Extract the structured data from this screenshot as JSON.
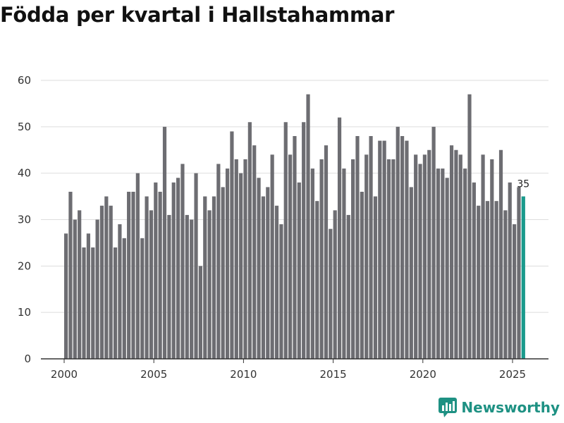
{
  "chart_data": {
    "type": "bar",
    "title": "Födda per kvartal i Hallstahammar",
    "xlabel": "",
    "ylabel": "",
    "ylim": [
      0,
      60
    ],
    "yticks": [
      0,
      10,
      20,
      30,
      40,
      50,
      60
    ],
    "xticks": [
      2000,
      2005,
      2010,
      2015,
      2020,
      2025
    ],
    "start_year": 2000,
    "highlight_label": "35",
    "colors": {
      "bar": "#6d6d72",
      "highlight": "#1a9a8c",
      "grid": "#dddddd",
      "axis": "#333333"
    },
    "values": [
      27,
      36,
      30,
      32,
      24,
      27,
      24,
      30,
      33,
      35,
      33,
      24,
      29,
      26,
      36,
      36,
      40,
      26,
      35,
      32,
      38,
      36,
      50,
      31,
      38,
      39,
      42,
      31,
      30,
      40,
      20,
      35,
      32,
      35,
      42,
      37,
      41,
      49,
      43,
      40,
      43,
      51,
      46,
      39,
      35,
      37,
      44,
      33,
      29,
      51,
      44,
      48,
      38,
      51,
      57,
      41,
      34,
      43,
      46,
      28,
      32,
      52,
      41,
      31,
      43,
      48,
      36,
      44,
      48,
      35,
      47,
      47,
      43,
      43,
      50,
      48,
      47,
      37,
      44,
      42,
      44,
      45,
      50,
      41,
      41,
      39,
      46,
      45,
      44,
      41,
      57,
      38,
      33,
      44,
      34,
      43,
      34,
      45,
      32,
      38,
      29,
      37,
      35
    ]
  },
  "brand": {
    "name": "Newsworthy",
    "icon": "newsworthy-logo-icon"
  }
}
